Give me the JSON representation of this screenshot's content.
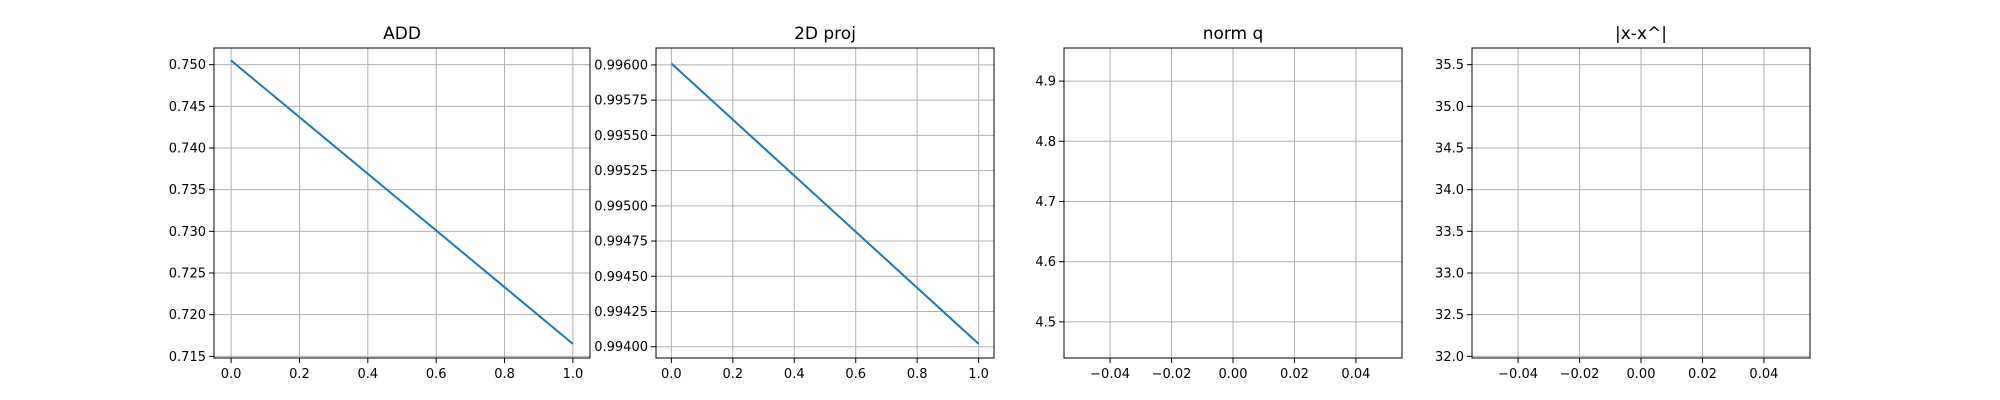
{
  "chart_data": [
    {
      "type": "line",
      "title": "ADD",
      "xlim": [
        -0.05,
        1.05
      ],
      "ylim": [
        0.7148,
        0.752
      ],
      "x_ticks": [
        0.0,
        0.2,
        0.4,
        0.6,
        0.8,
        1.0
      ],
      "x_tick_labels": [
        "0.0",
        "0.2",
        "0.4",
        "0.6",
        "0.8",
        "1.0"
      ],
      "y_ticks": [
        0.715,
        0.72,
        0.725,
        0.73,
        0.735,
        0.74,
        0.745,
        0.75
      ],
      "y_tick_labels": [
        "0.715",
        "0.720",
        "0.725",
        "0.730",
        "0.735",
        "0.740",
        "0.745",
        "0.750"
      ],
      "grid": true,
      "series": [
        {
          "x": [
            0.0,
            1.0
          ],
          "y": [
            0.7505,
            0.7165
          ],
          "color": "#1f77b4"
        }
      ]
    },
    {
      "type": "line",
      "title": "2D proj",
      "xlim": [
        -0.05,
        1.05
      ],
      "ylim": [
        0.99392,
        0.99612
      ],
      "x_ticks": [
        0.0,
        0.2,
        0.4,
        0.6,
        0.8,
        1.0
      ],
      "x_tick_labels": [
        "0.0",
        "0.2",
        "0.4",
        "0.6",
        "0.8",
        "1.0"
      ],
      "y_ticks": [
        0.994,
        0.99425,
        0.9945,
        0.99475,
        0.995,
        0.99525,
        0.9955,
        0.99575,
        0.996
      ],
      "y_tick_labels": [
        "0.99400",
        "0.99425",
        "0.99450",
        "0.99475",
        "0.99500",
        "0.99525",
        "0.99550",
        "0.99575",
        "0.99600"
      ],
      "grid": true,
      "series": [
        {
          "x": [
            0.0,
            1.0
          ],
          "y": [
            0.99601,
            0.99402
          ],
          "color": "#1f77b4"
        }
      ]
    },
    {
      "type": "line",
      "title": "norm q",
      "xlim": [
        -0.055,
        0.055
      ],
      "ylim": [
        4.44,
        4.955
      ],
      "x_ticks": [
        -0.04,
        -0.02,
        0.0,
        0.02,
        0.04
      ],
      "x_tick_labels": [
        "−0.04",
        "−0.02",
        "0.00",
        "0.02",
        "0.04"
      ],
      "y_ticks": [
        4.5,
        4.6,
        4.7,
        4.8,
        4.9
      ],
      "y_tick_labels": [
        "4.5",
        "4.6",
        "4.7",
        "4.8",
        "4.9"
      ],
      "grid": true,
      "series": []
    },
    {
      "type": "line",
      "title": "|x-x^|",
      "xlim": [
        -0.055,
        0.055
      ],
      "ylim": [
        31.98,
        35.7
      ],
      "x_ticks": [
        -0.04,
        -0.02,
        0.0,
        0.02,
        0.04
      ],
      "x_tick_labels": [
        "−0.04",
        "−0.02",
        "0.00",
        "0.02",
        "0.04"
      ],
      "y_ticks": [
        32.0,
        32.5,
        33.0,
        33.5,
        34.0,
        34.5,
        35.0,
        35.5
      ],
      "y_tick_labels": [
        "32.0",
        "32.5",
        "33.0",
        "33.5",
        "34.0",
        "34.5",
        "35.0",
        "35.5"
      ],
      "grid": true,
      "series": []
    }
  ]
}
